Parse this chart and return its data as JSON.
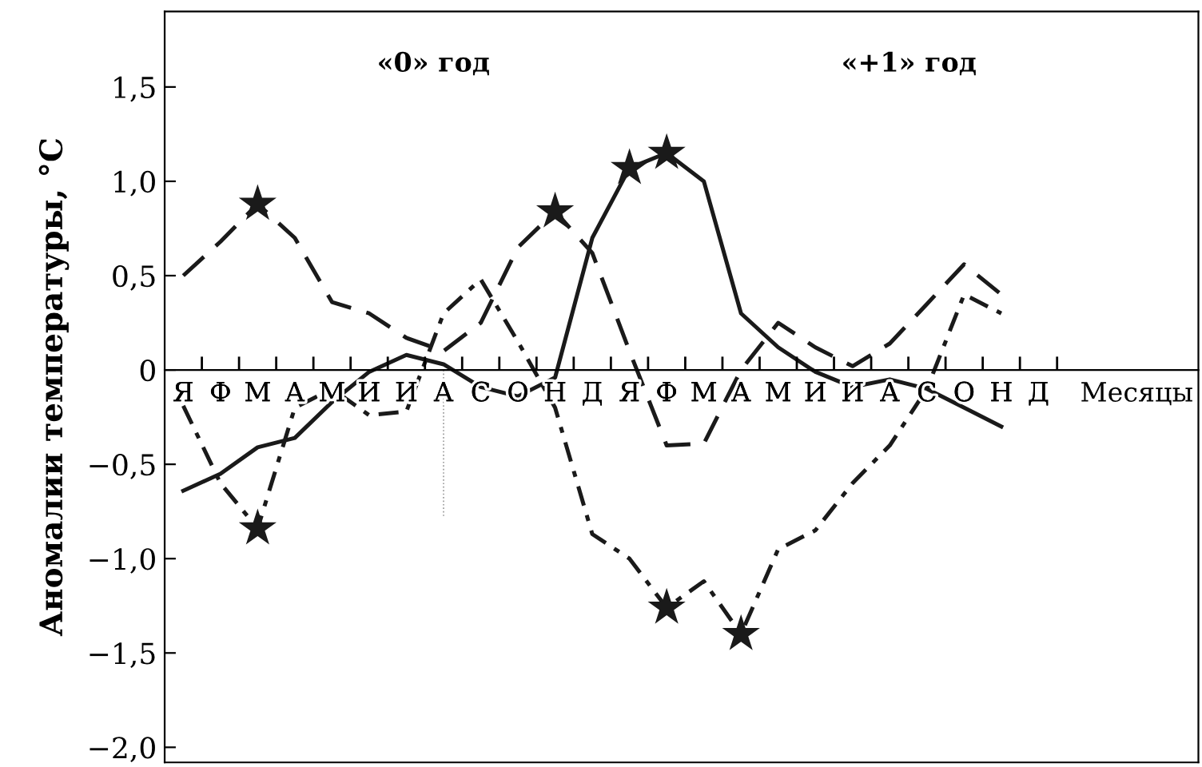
{
  "chart_data": {
    "type": "line",
    "ylabel": "Аномалии температуры, °C",
    "xlabel": "Месяцы",
    "annotations": [
      "«0» год",
      "«+1» год"
    ],
    "categories": [
      "Я",
      "Ф",
      "М",
      "А",
      "М",
      "И",
      "И",
      "А",
      "С",
      "О",
      "Н",
      "Д",
      "Я",
      "Ф",
      "М",
      "А",
      "М",
      "И",
      "И",
      "А",
      "С",
      "О",
      "Н",
      "Д"
    ],
    "ylim": [
      -2.08,
      1.9
    ],
    "yticks": [
      {
        "value": -2,
        "label": "−2,0"
      },
      {
        "value": -1.5,
        "label": "−1,5"
      },
      {
        "value": -1,
        "label": "−1,0"
      },
      {
        "value": -0.5,
        "label": "−0,5"
      },
      0,
      {
        "value": 0.5,
        "label": "0,5"
      },
      {
        "value": 1,
        "label": "1,0"
      },
      {
        "value": 1.5,
        "label": "1,5"
      }
    ],
    "grid": false,
    "legend": false,
    "series": [
      {
        "color": "#1a1a1a",
        "line_style": "solid",
        "marker": "none",
        "values": [
          -0.64,
          -0.55,
          -0.41,
          -0.36,
          -0.17,
          -0.01,
          0.08,
          0.03,
          -0.09,
          -0.14,
          -0.04,
          0.7,
          1.07,
          1.15,
          1.0,
          0.3,
          0.12,
          -0.01,
          -0.09,
          -0.05,
          -0.1,
          -0.2,
          -0.3,
          null
        ]
      },
      {
        "color": "#1a1a1a",
        "line_style": "dashed",
        "marker": "none",
        "values": [
          0.5,
          0.68,
          0.88,
          0.7,
          0.36,
          0.3,
          0.17,
          0.1,
          0.25,
          0.65,
          0.84,
          0.62,
          0.1,
          -0.4,
          -0.39,
          0.0,
          0.25,
          0.12,
          0.02,
          0.14,
          0.35,
          0.56,
          0.4,
          null
        ]
      },
      {
        "color": "#1a1a1a",
        "line_style": "dashdot",
        "marker": "none",
        "values": [
          -0.19,
          -0.6,
          -0.84,
          -0.2,
          -0.1,
          -0.24,
          -0.22,
          0.3,
          0.48,
          0.15,
          -0.2,
          -0.87,
          -1.0,
          -1.26,
          -1.12,
          -1.4,
          -0.95,
          -0.85,
          -0.6,
          -0.4,
          -0.1,
          0.4,
          0.3,
          null
        ]
      },
      {
        "type": "scatter",
        "color": "#1a1a1a",
        "marker": "star",
        "values": [
          null,
          null,
          0.88,
          null,
          null,
          null,
          null,
          null,
          null,
          null,
          0.84,
          null,
          1.07,
          1.15,
          null,
          null,
          null,
          null,
          null,
          null,
          null,
          null,
          null,
          null
        ]
      },
      {
        "type": "scatter",
        "color": "#1a1a1a",
        "marker": "star",
        "values": [
          null,
          null,
          -0.84,
          null,
          null,
          null,
          null,
          null,
          null,
          null,
          null,
          null,
          null,
          -1.26,
          null,
          -1.4,
          null,
          null,
          null,
          null,
          null,
          null,
          null,
          null
        ]
      }
    ]
  }
}
